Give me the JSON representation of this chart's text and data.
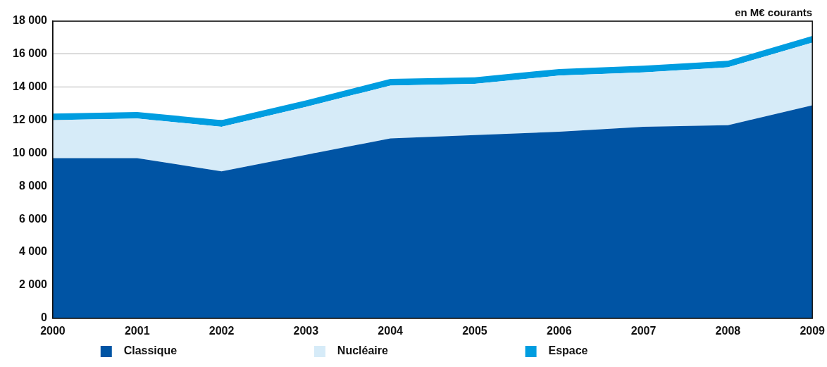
{
  "chart_data": {
    "type": "area",
    "stacked": true,
    "annotations": [
      "en M€ courants"
    ],
    "x": [
      2000,
      2001,
      2002,
      2003,
      2004,
      2005,
      2006,
      2007,
      2008,
      2009
    ],
    "xlim": [
      2000,
      2009
    ],
    "xticks": [
      2000,
      2001,
      2002,
      2003,
      2004,
      2005,
      2006,
      2007,
      2008,
      2009
    ],
    "ylim": [
      0,
      18000
    ],
    "yticks": [
      0,
      {
        "value": 2000,
        "label": "2 000"
      },
      {
        "value": 4000,
        "label": "4 000"
      },
      {
        "value": 6000,
        "label": "6 000"
      },
      {
        "value": 8000,
        "label": "8 000"
      },
      {
        "value": 10000,
        "label": "10 000"
      },
      {
        "value": 12000,
        "label": "12 000"
      },
      {
        "value": 14000,
        "label": "14 000"
      },
      {
        "value": 16000,
        "label": "16 000"
      },
      {
        "value": 18000,
        "label": "18 000"
      }
    ],
    "grid": "y",
    "legend": "bottom",
    "series": [
      {
        "name": "Classique",
        "color": "#0054a4",
        "values": [
          9700,
          9700,
          8900,
          9900,
          10900,
          11100,
          11300,
          11600,
          11700,
          12900
        ]
      },
      {
        "name": "Nucléaire",
        "color": "#d6ebf8",
        "values": [
          2300,
          2400,
          2700,
          2900,
          3200,
          3100,
          3400,
          3300,
          3500,
          3800
        ]
      },
      {
        "name": "Espace",
        "color": "#009de0",
        "values": [
          400,
          400,
          400,
          400,
          400,
          400,
          400,
          400,
          400,
          400
        ]
      }
    ]
  }
}
